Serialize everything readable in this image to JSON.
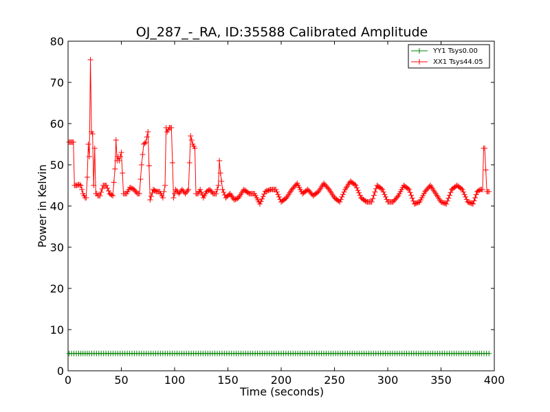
{
  "chart_data": {
    "type": "line",
    "title": "OJ_287_-_RA, ID:35588 Calibrated Amplitude",
    "xlabel": "Time (seconds)",
    "ylabel": "Power in Kelvin",
    "xlim": [
      0,
      400
    ],
    "ylim": [
      0,
      80
    ],
    "xticks": [
      "0",
      "50",
      "100",
      "150",
      "200",
      "250",
      "300",
      "350",
      "400"
    ],
    "yticks": [
      "0",
      "10",
      "20",
      "30",
      "40",
      "50",
      "60",
      "70",
      "80"
    ],
    "grid": false,
    "legend_position": "top-right",
    "marker": "plus",
    "series": [
      {
        "name": "YY1 Tsys0.00",
        "color": "#008000",
        "x": [
          1,
          10,
          20,
          40,
          60,
          80,
          100,
          120,
          140,
          160,
          180,
          200,
          220,
          240,
          260,
          280,
          300,
          320,
          340,
          360,
          380,
          388,
          395
        ],
        "y": [
          4.2,
          4.2,
          4.2,
          4.2,
          4.2,
          4.2,
          4.2,
          4.2,
          4.2,
          4.2,
          4.2,
          4.2,
          4.2,
          4.2,
          4.2,
          4.2,
          4.2,
          4.2,
          4.2,
          4.2,
          4.2,
          4.2,
          4.2
        ]
      },
      {
        "name": "XX1 Tsys44.05",
        "color": "#ff0000",
        "x": [
          1,
          3,
          5,
          6,
          8,
          10,
          12,
          14,
          16,
          17,
          18,
          19,
          20,
          21,
          22,
          23,
          24,
          25,
          26,
          27,
          28,
          30,
          33,
          36,
          39,
          42,
          44,
          45,
          46,
          47,
          48,
          50,
          52,
          55,
          58,
          62,
          65,
          67,
          69,
          71,
          73,
          75,
          77,
          80,
          83,
          86,
          89,
          91,
          92,
          93,
          95,
          97,
          99,
          101,
          104,
          107,
          110,
          113,
          115,
          117,
          118,
          119,
          120,
          122,
          124,
          127,
          130,
          133,
          136,
          139,
          141,
          142,
          143,
          145,
          148,
          152,
          156,
          160,
          165,
          170,
          175,
          180,
          185,
          190,
          195,
          200,
          205,
          210,
          215,
          220,
          225,
          230,
          235,
          240,
          245,
          250,
          255,
          260,
          265,
          270,
          275,
          280,
          285,
          290,
          295,
          300,
          305,
          310,
          315,
          320,
          325,
          330,
          335,
          340,
          345,
          350,
          355,
          360,
          365,
          370,
          375,
          380,
          384,
          387,
          389,
          390,
          391,
          393,
          395
        ],
        "y": [
          55.5,
          55.5,
          55.5,
          45,
          45,
          45.2,
          45,
          43,
          42,
          42,
          47,
          55,
          52,
          75.5,
          58,
          57.5,
          45,
          54,
          43,
          43,
          42.5,
          42.5,
          45,
          45,
          43,
          42.5,
          49,
          56,
          51,
          52,
          51,
          53,
          43,
          43,
          44.5,
          44,
          43,
          43,
          50,
          55,
          55.5,
          58,
          41.5,
          44,
          43.5,
          43.5,
          42,
          45,
          59,
          58,
          59,
          59,
          42,
          44,
          43,
          44,
          43,
          44,
          57,
          55,
          54.5,
          54,
          43,
          43,
          44,
          42,
          43.5,
          44,
          43,
          43,
          45,
          51,
          48,
          44,
          42,
          43,
          41.5,
          42,
          44,
          43,
          43,
          40.5,
          43.5,
          44,
          44,
          41,
          42,
          44,
          45.5,
          43,
          44,
          42.5,
          43.5,
          45.5,
          44,
          42,
          41,
          44,
          46,
          45,
          42,
          41,
          41,
          45,
          44,
          41,
          41,
          42.5,
          45,
          44,
          40.5,
          41,
          43.5,
          45,
          43,
          41,
          40.5,
          44,
          45,
          44,
          41,
          40.5,
          43.5,
          44,
          44,
          54,
          54,
          43.5,
          43.5
        ]
      }
    ]
  }
}
